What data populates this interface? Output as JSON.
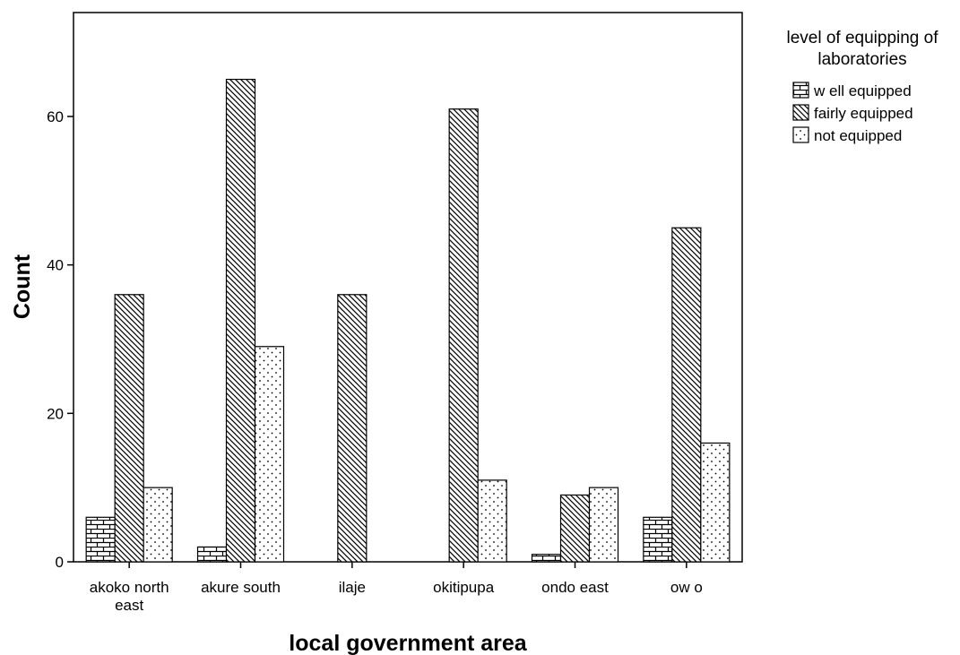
{
  "chart_data": {
    "type": "bar",
    "title": "",
    "xlabel": "local government area",
    "ylabel": "Count",
    "ylim": [
      0,
      74
    ],
    "yticks": [
      0,
      20,
      40,
      60
    ],
    "grid": false,
    "legend_position": "top-right",
    "legend_title": [
      "level of equipping of",
      "laboratories"
    ],
    "categories": [
      [
        "akoko north",
        "east"
      ],
      [
        "akure south"
      ],
      [
        "ilaje"
      ],
      [
        "okitipupa"
      ],
      [
        "ondo east"
      ],
      [
        "ow o"
      ]
    ],
    "series": [
      {
        "name": "w ell equipped",
        "pattern": "brick",
        "values": [
          6,
          2,
          0,
          0,
          1,
          6
        ]
      },
      {
        "name": "fairly equipped",
        "pattern": "diagonal",
        "values": [
          36,
          65,
          36,
          61,
          9,
          45
        ]
      },
      {
        "name": "not equipped",
        "pattern": "dots",
        "values": [
          10,
          29,
          0,
          11,
          10,
          16
        ]
      }
    ]
  }
}
